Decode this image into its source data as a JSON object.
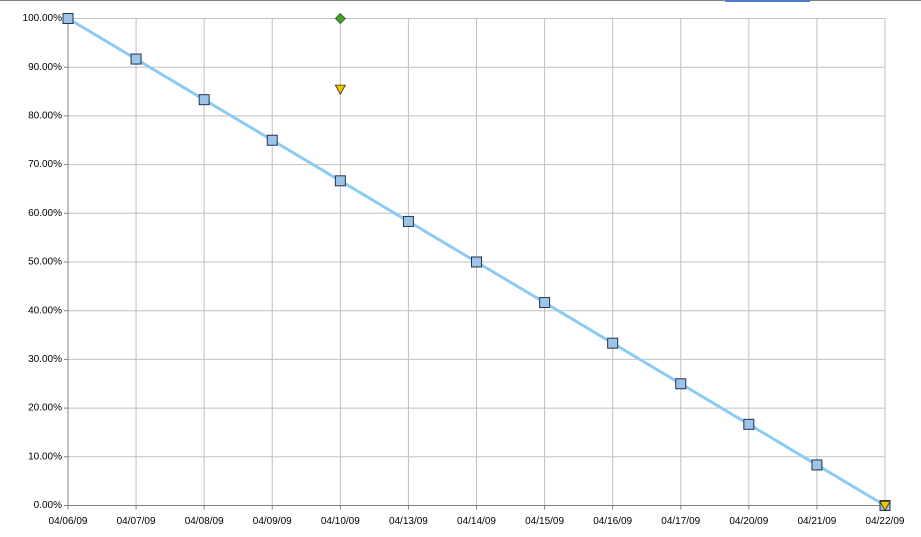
{
  "chart_data": {
    "type": "line",
    "categories": [
      "04/06/09",
      "04/07/09",
      "04/08/09",
      "04/09/09",
      "04/10/09",
      "04/13/09",
      "04/14/09",
      "04/15/09",
      "04/16/09",
      "04/17/09",
      "04/20/09",
      "04/21/09",
      "04/22/09"
    ],
    "series": [
      {
        "color": "#8ccbf2",
        "marker": "square",
        "marker_color": "#9dc3e6",
        "show_line": true,
        "values": [
          100,
          91.67,
          83.33,
          75,
          66.67,
          58.33,
          50,
          41.67,
          33.33,
          25,
          16.67,
          8.33,
          0
        ]
      },
      {
        "color": "#4c9a2a",
        "marker": "diamond",
        "marker_color": "#4c9a2a",
        "show_line": false,
        "values": [
          null,
          null,
          null,
          null,
          100,
          null,
          null,
          null,
          null,
          null,
          null,
          null,
          null
        ]
      },
      {
        "color": "#f5c400",
        "marker": "triangle",
        "marker_color": "#f5c400",
        "show_line": false,
        "values": [
          null,
          null,
          null,
          null,
          85.5,
          null,
          null,
          null,
          null,
          null,
          null,
          null,
          0
        ]
      }
    ],
    "ylim": [
      0,
      100
    ],
    "yticks": [
      {
        "value": 0,
        "label": "0.00%"
      },
      {
        "value": 10,
        "label": "10.00%"
      },
      {
        "value": 20,
        "label": "20.00%"
      },
      {
        "value": 30,
        "label": "30.00%"
      },
      {
        "value": 40,
        "label": "40.00%"
      },
      {
        "value": 50,
        "label": "50.00%"
      },
      {
        "value": 60,
        "label": "60.00%"
      },
      {
        "value": 70,
        "label": "70.00%"
      },
      {
        "value": 80,
        "label": "80.00%"
      },
      {
        "value": 90,
        "label": "90.00%"
      },
      {
        "value": 100,
        "label": "100.00%"
      }
    ],
    "grid": true
  }
}
